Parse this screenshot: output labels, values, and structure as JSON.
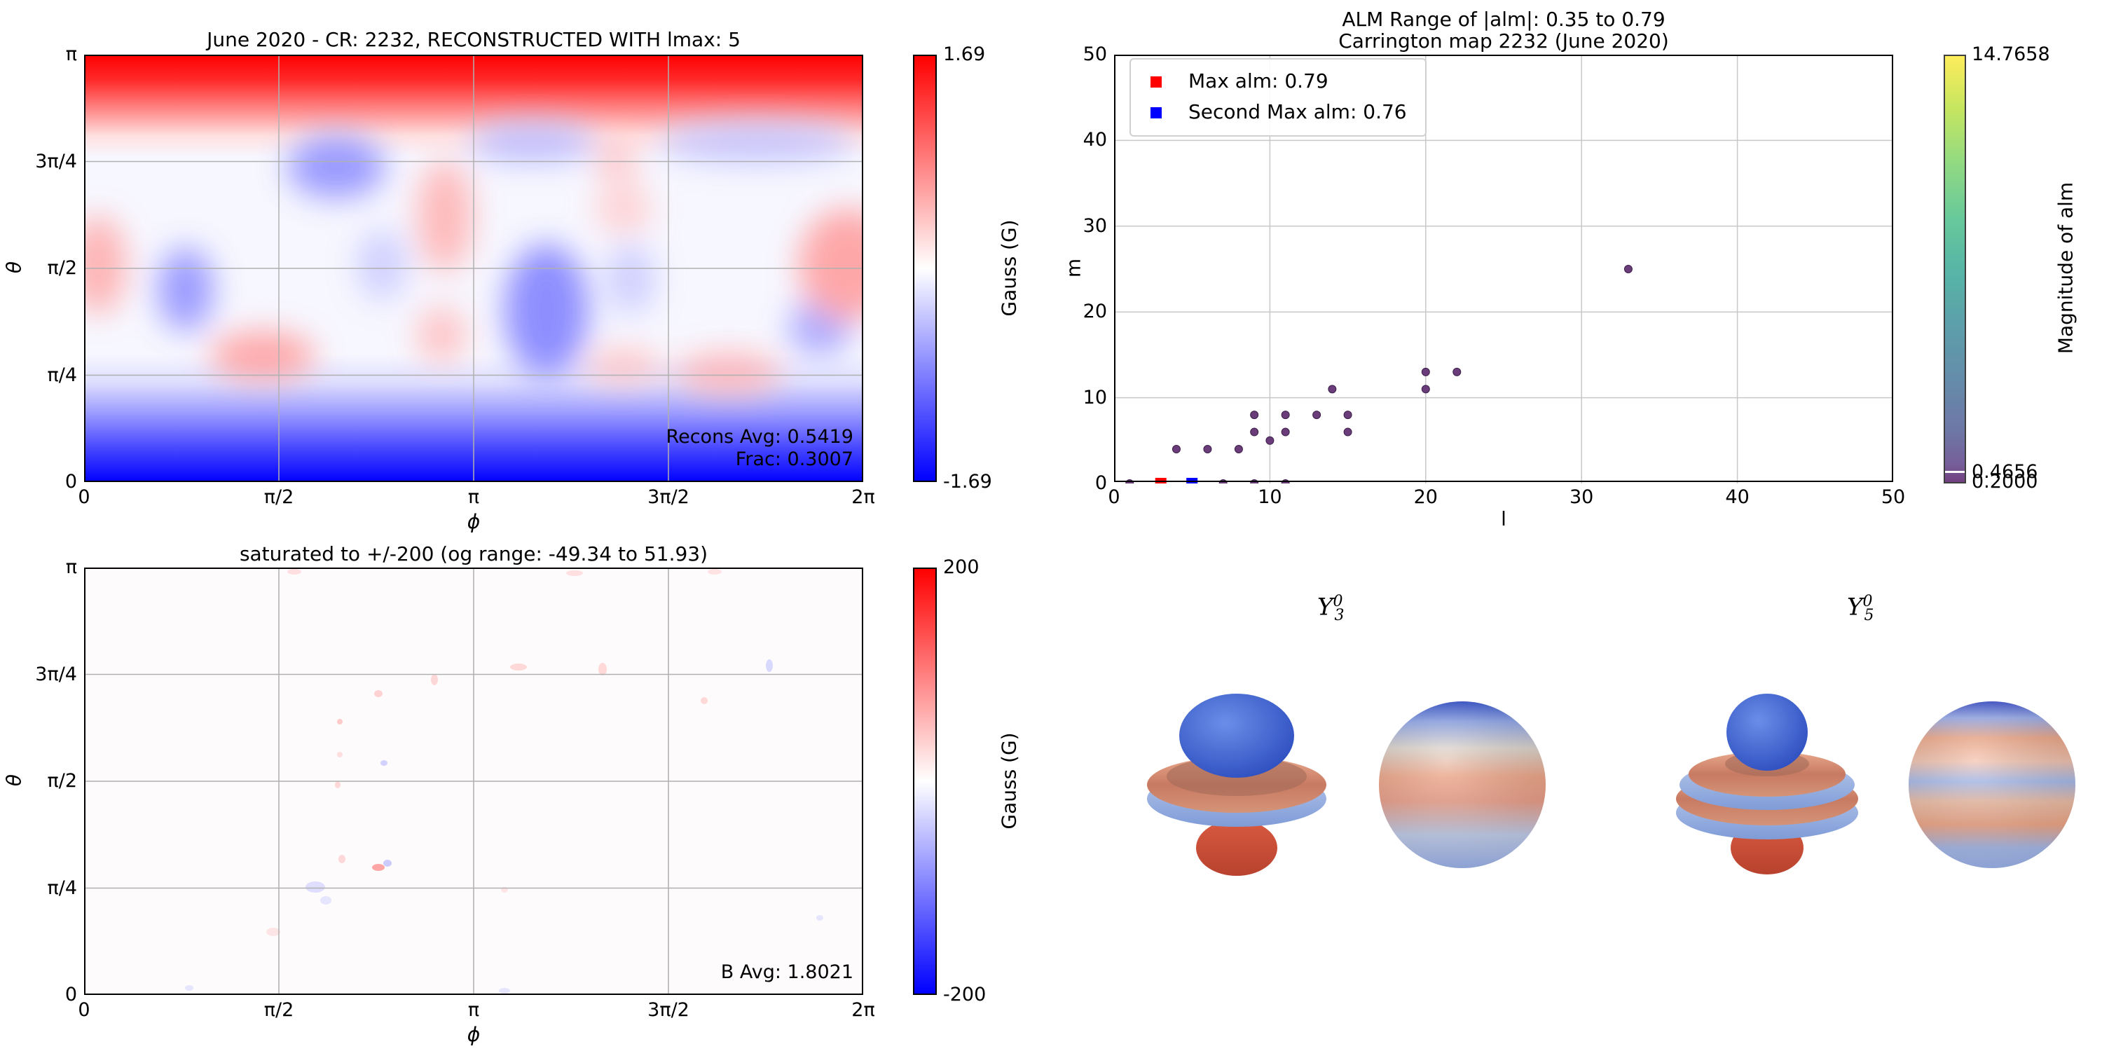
{
  "panel1": {
    "title": "June 2020 - CR: 2232, RECONSTRUCTED WITH lmax: 5",
    "xlabel": "ϕ",
    "ylabel": "θ",
    "xticks": [
      "0",
      "π/2",
      "π",
      "3π/2",
      "2π"
    ],
    "yticks": [
      "π",
      "3π/4",
      "π/2",
      "π/4",
      "0"
    ],
    "annotation1": "Recons Avg: 0.5419",
    "annotation2": "Frac: 0.3007",
    "cbar_label": "Gauss (G)",
    "cbar_max": "1.69",
    "cbar_min": "-1.69"
  },
  "panel2": {
    "title1": "ALM Range of |alm|: 0.35 to 0.79",
    "title2": "Carrington map 2232 (June 2020)",
    "xlabel": "l",
    "ylabel": "m",
    "xticks": [
      "0",
      "10",
      "20",
      "30",
      "40",
      "50"
    ],
    "yticks": [
      "50",
      "40",
      "30",
      "20",
      "10",
      "0"
    ],
    "legend1": "Max alm: 0.79",
    "legend2": "Second Max alm: 0.76",
    "cbar_label": "Magnitude of alm",
    "cbar_top": "14.7658",
    "cbar_mid": "0.4656",
    "cbar_bottom": "0.2000"
  },
  "panel3": {
    "title": "saturated to +/-200 (og range: -49.34 to 51.93)",
    "xlabel": "ϕ",
    "ylabel": "θ",
    "xticks": [
      "0",
      "π/2",
      "π",
      "3π/2",
      "2π"
    ],
    "yticks": [
      "π",
      "3π/4",
      "π/2",
      "π/4",
      "0"
    ],
    "annotation": "B Avg: 1.8021",
    "cbar_label": "Gauss (G)",
    "cbar_max": "200",
    "cbar_min": "-200"
  },
  "panel4": {
    "label_a": "Y",
    "label_a_sup": "0",
    "label_a_sub": "3",
    "label_b": "Y",
    "label_b_sup": "0",
    "label_b_sub": "5"
  },
  "colors": {
    "max_marker": "#ff0000",
    "second_marker": "#0000ff",
    "scatter_point": "#6a3d7a",
    "field_positive": "#ff0000",
    "field_negative": "#0000ff"
  },
  "chart_data": [
    {
      "type": "heatmap",
      "title": "June 2020 - CR: 2232, RECONSTRUCTED WITH lmax: 5",
      "xlabel": "ϕ",
      "ylabel": "θ",
      "xlim": [
        0,
        6.2832
      ],
      "ylim": [
        0,
        3.1416
      ],
      "zlim": [
        -1.69,
        1.69
      ],
      "colormap": "bwr",
      "grid": true
    },
    {
      "type": "scatter",
      "title": "ALM Range of |alm|: 0.35 to 0.79",
      "subtitle": "Carrington map 2232 (June 2020)",
      "xlabel": "l",
      "ylabel": "m",
      "xlim": [
        0,
        50
      ],
      "ylim": [
        0,
        50
      ],
      "grid": true,
      "legend_position": "top-left",
      "points": [
        {
          "l": 1,
          "m": 0
        },
        {
          "l": 4,
          "m": 4
        },
        {
          "l": 6,
          "m": 4
        },
        {
          "l": 7,
          "m": 0
        },
        {
          "l": 8,
          "m": 4
        },
        {
          "l": 9,
          "m": 0
        },
        {
          "l": 9,
          "m": 6
        },
        {
          "l": 9,
          "m": 8
        },
        {
          "l": 10,
          "m": 5
        },
        {
          "l": 11,
          "m": 0
        },
        {
          "l": 11,
          "m": 6
        },
        {
          "l": 11,
          "m": 8
        },
        {
          "l": 13,
          "m": 8
        },
        {
          "l": 14,
          "m": 11
        },
        {
          "l": 15,
          "m": 6
        },
        {
          "l": 15,
          "m": 8
        },
        {
          "l": 20,
          "m": 11
        },
        {
          "l": 20,
          "m": 13
        },
        {
          "l": 22,
          "m": 13
        },
        {
          "l": 33,
          "m": 25
        }
      ],
      "series": [
        {
          "name": "Max alm: 0.79",
          "l": 3,
          "m": 0
        },
        {
          "name": "Second Max alm: 0.76",
          "l": 5,
          "m": 0
        }
      ],
      "colorbar": {
        "label": "Magnitude of alm",
        "ticks": [
          "14.7658",
          "0.4656",
          "0.2000"
        ]
      }
    },
    {
      "type": "heatmap",
      "title": "saturated to +/-200 (og range: -49.34 to 51.93)",
      "xlabel": "ϕ",
      "ylabel": "θ",
      "xlim": [
        0,
        6.2832
      ],
      "ylim": [
        0,
        3.1416
      ],
      "zlim": [
        -200,
        200
      ],
      "colormap": "bwr",
      "grid": true
    }
  ]
}
